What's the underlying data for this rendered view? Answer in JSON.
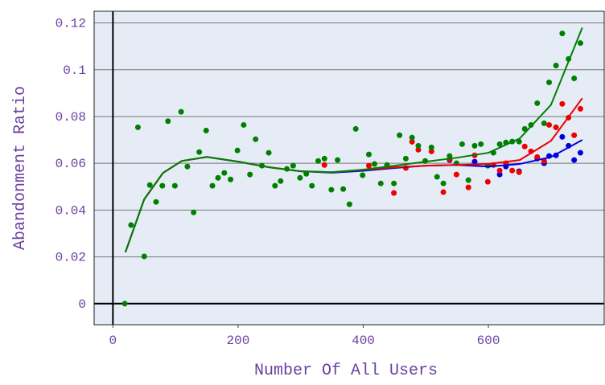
{
  "chart_data": {
    "type": "scatter",
    "x_label": "Number Of All Users",
    "y_label": "Abandonment Ratio",
    "xlim": [
      -30,
      785
    ],
    "ylim": [
      -0.009,
      0.125
    ],
    "xticks": [
      0,
      200,
      400,
      600
    ],
    "yticks": [
      0,
      0.02,
      0.04,
      0.06,
      0.08,
      0.1,
      0.12
    ],
    "grid": true,
    "background": "#e5ecf6",
    "series": [
      {
        "mode": "markers",
        "color": "#0000dd",
        "x": [
          538,
          578,
          618,
          628,
          649,
          678,
          689,
          697,
          708,
          718,
          728,
          737,
          747
        ],
        "values": [
          0.0614,
          0.0607,
          0.0552,
          0.0586,
          0.0566,
          0.062,
          0.06,
          0.0631,
          0.0634,
          0.0713,
          0.0675,
          0.0614,
          0.0645
        ]
      },
      {
        "mode": "markers",
        "color": "#ee0000",
        "x": [
          338,
          409,
          449,
          468,
          478,
          488,
          509,
          528,
          538,
          549,
          568,
          578,
          599,
          608,
          618,
          628,
          638,
          649,
          658,
          668,
          678,
          689,
          697,
          708,
          718,
          728,
          737,
          747
        ],
        "values": [
          0.0593,
          0.059,
          0.0473,
          0.058,
          0.0692,
          0.0658,
          0.0651,
          0.0477,
          0.0617,
          0.0552,
          0.0497,
          0.0634,
          0.0521,
          0.0593,
          0.0569,
          0.06,
          0.0569,
          0.0562,
          0.0672,
          0.0651,
          0.0627,
          0.061,
          0.0764,
          0.0754,
          0.0854,
          0.0795,
          0.072,
          0.0833
        ]
      },
      {
        "mode": "markers",
        "color": "#008000",
        "x": [
          19,
          29,
          40,
          50,
          59,
          69,
          79,
          88,
          99,
          109,
          119,
          129,
          138,
          149,
          159,
          168,
          178,
          188,
          199,
          209,
          219,
          228,
          238,
          249,
          259,
          268,
          278,
          288,
          299,
          309,
          318,
          328,
          338,
          349,
          359,
          368,
          378,
          388,
          399,
          409,
          418,
          428,
          438,
          449,
          458,
          468,
          478,
          488,
          499,
          509,
          518,
          528,
          538,
          549,
          558,
          568,
          578,
          588,
          599,
          608,
          618,
          628,
          638,
          649,
          658,
          668,
          678,
          689,
          697,
          708,
          718,
          728,
          737,
          747
        ],
        "values": [
          0,
          0.0336,
          0.0754,
          0.0202,
          0.0507,
          0.0435,
          0.0504,
          0.078,
          0.0504,
          0.082,
          0.0586,
          0.039,
          0.0648,
          0.074,
          0.0504,
          0.0538,
          0.0559,
          0.0531,
          0.0655,
          0.0764,
          0.0552,
          0.0703,
          0.059,
          0.0645,
          0.0504,
          0.0524,
          0.0576,
          0.059,
          0.0538,
          0.0555,
          0.0504,
          0.061,
          0.062,
          0.0487,
          0.0614,
          0.049,
          0.0425,
          0.0747,
          0.0549,
          0.0638,
          0.0597,
          0.0514,
          0.0593,
          0.0514,
          0.072,
          0.062,
          0.071,
          0.0675,
          0.061,
          0.0668,
          0.0542,
          0.0514,
          0.0631,
          0.06,
          0.0682,
          0.0528,
          0.0675,
          0.0682,
          0.059,
          0.0645,
          0.0682,
          0.0689,
          0.0693,
          0.0693,
          0.0747,
          0.0764,
          0.0857,
          0.0771,
          0.0946,
          0.1018,
          0.1155,
          0.1046,
          0.0963,
          0.1114
        ]
      },
      {
        "mode": "lines",
        "color": "#0000dd",
        "x": [
          20,
          50,
          80,
          110,
          150,
          200,
          250,
          300,
          350,
          400,
          450,
          500,
          550,
          600,
          650,
          700,
          750
        ],
        "values": [
          0.022,
          0.0446,
          0.0559,
          0.061,
          0.0627,
          0.0607,
          0.0583,
          0.0566,
          0.056,
          0.0568,
          0.058,
          0.059,
          0.0593,
          0.0586,
          0.0597,
          0.0627,
          0.07
        ]
      },
      {
        "mode": "lines",
        "color": "#ee0000",
        "x": [
          20,
          50,
          80,
          110,
          150,
          200,
          250,
          300,
          350,
          400,
          450,
          500,
          550,
          600,
          650,
          700,
          750
        ],
        "values": [
          0.022,
          0.0446,
          0.0559,
          0.061,
          0.0627,
          0.0607,
          0.0583,
          0.0566,
          0.0562,
          0.0572,
          0.0583,
          0.059,
          0.0593,
          0.0597,
          0.0614,
          0.0696,
          0.0878
        ]
      },
      {
        "mode": "lines",
        "color": "#008000",
        "x": [
          20,
          50,
          80,
          110,
          150,
          200,
          250,
          300,
          350,
          400,
          450,
          500,
          550,
          600,
          650,
          700,
          750
        ],
        "values": [
          0.022,
          0.0446,
          0.0559,
          0.061,
          0.0627,
          0.0607,
          0.0583,
          0.0566,
          0.0562,
          0.0573,
          0.059,
          0.0607,
          0.0624,
          0.0645,
          0.0706,
          0.085,
          0.118
        ]
      }
    ]
  }
}
